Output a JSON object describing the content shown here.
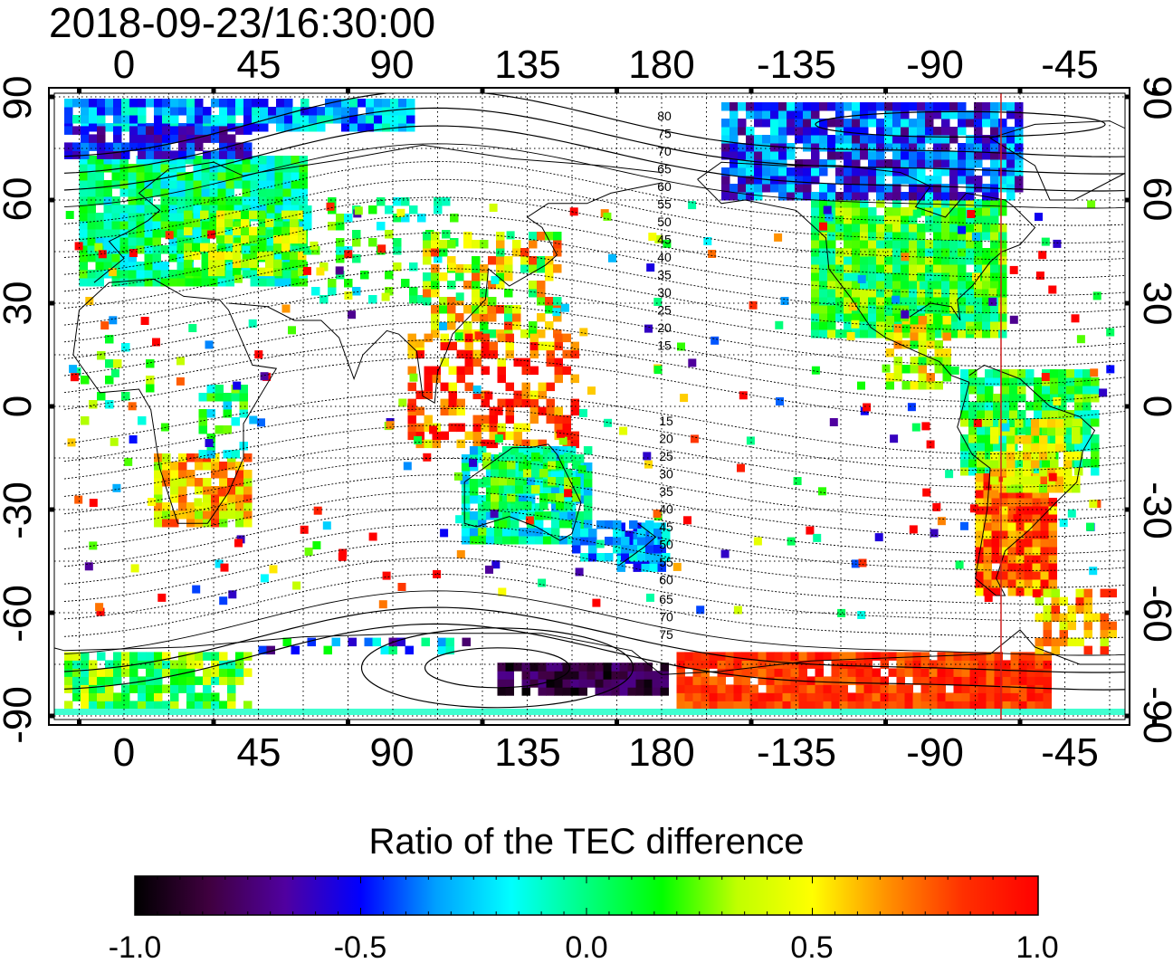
{
  "timestamp": "2018-09-23/16:30:00",
  "map": {
    "lon_ticks_top": [
      "0",
      "45",
      "90",
      "135",
      "180",
      "-135",
      "-90",
      "-45"
    ],
    "lon_ticks_bottom": [
      "0",
      "45",
      "90",
      "135",
      "180",
      "-135",
      "-90",
      "-45"
    ],
    "lat_ticks_left": [
      "90",
      "60",
      "30",
      "0",
      "-30",
      "-60",
      "-90"
    ],
    "lat_ticks_right": [
      "90",
      "60",
      "30",
      "0",
      "-30",
      "-60",
      "-90"
    ],
    "contour_labels_north": [
      "80",
      "75",
      "70",
      "65",
      "60",
      "55",
      "50",
      "45",
      "40",
      "35",
      "30",
      "25",
      "20",
      "15"
    ],
    "contour_labels_south": [
      "15",
      "20",
      "25",
      "30",
      "35",
      "40",
      "45",
      "50",
      "55",
      "60",
      "65",
      "70",
      "75"
    ],
    "grid": true
  },
  "colorbar": {
    "title": "Ratio of the TEC difference",
    "tick_labels": [
      "-1.0",
      "-0.5",
      "0.0",
      "0.5",
      "1.0"
    ],
    "stops": [
      "#000000",
      "#400040",
      "#5000a0",
      "#0000ff",
      "#00a0ff",
      "#00ffff",
      "#00ff80",
      "#00ff00",
      "#c0ff00",
      "#ffff00",
      "#ff9000",
      "#ff3000",
      "#ff0000"
    ]
  },
  "colors": {
    "meridian_line": "#d02020"
  }
}
